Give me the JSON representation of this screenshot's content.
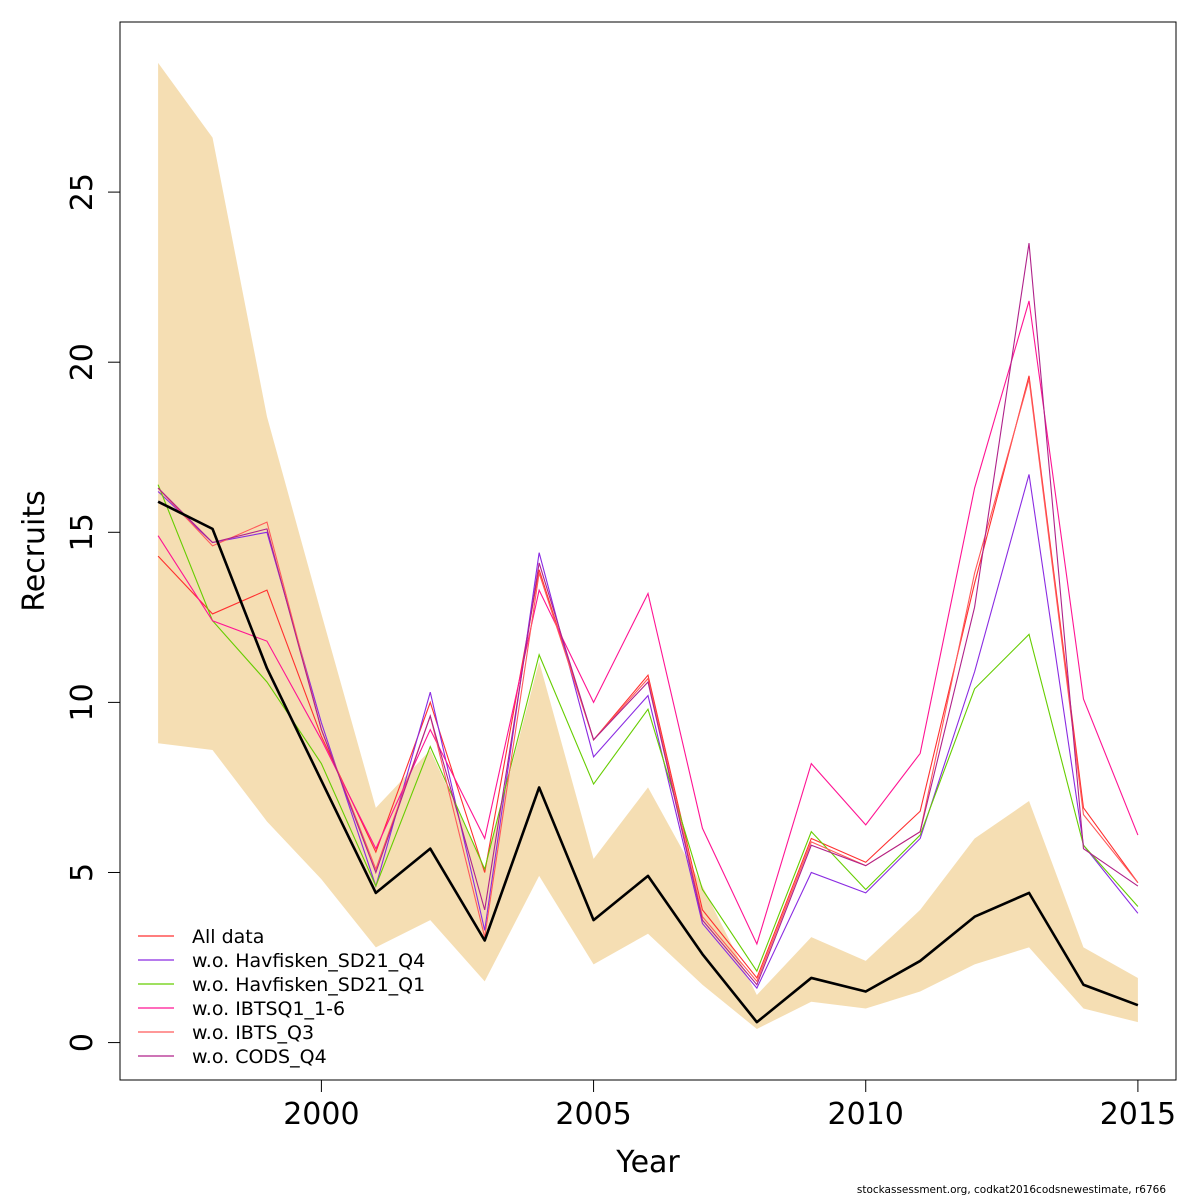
{
  "chart_data": {
    "type": "line",
    "xlabel": "Year",
    "ylabel": "Recruits",
    "xlim": [
      1996.3,
      2015.7
    ],
    "ylim": [
      -1.1,
      30.0
    ],
    "x_ticks": [
      2000,
      2005,
      2010,
      2015
    ],
    "x_tick_labels": [
      "2000",
      "2005",
      "2010",
      "2015"
    ],
    "y_ticks": [
      0,
      5,
      10,
      15,
      20,
      25
    ],
    "y_tick_labels": [
      "0",
      "5",
      "10",
      "15",
      "20",
      "25"
    ],
    "grid": false,
    "legend_position": "bottom-left",
    "x": [
      1997,
      1998,
      1999,
      2000,
      2001,
      2002,
      2003,
      2004,
      2005,
      2006,
      2007,
      2008,
      2009,
      2010,
      2011,
      2012,
      2013,
      2014,
      2015
    ],
    "confidence_band": {
      "color": "#F5DEB3",
      "upper": [
        28.8,
        26.6,
        18.4,
        12.6,
        6.9,
        8.6,
        5.1,
        11.2,
        5.4,
        7.5,
        4.6,
        1.4,
        3.1,
        2.4,
        3.9,
        6.0,
        7.1,
        2.8,
        1.9
      ],
      "lower": [
        8.8,
        8.6,
        6.5,
        4.8,
        2.8,
        3.6,
        1.8,
        4.9,
        2.3,
        3.2,
        1.7,
        0.4,
        1.2,
        1.0,
        1.5,
        2.3,
        2.8,
        1.0,
        0.6
      ]
    },
    "estimate": {
      "color": "#000000",
      "values": [
        15.9,
        15.1,
        11.0,
        7.7,
        4.4,
        5.7,
        3.0,
        7.5,
        3.6,
        4.9,
        2.6,
        0.6,
        1.9,
        1.5,
        2.4,
        3.7,
        4.4,
        1.7,
        1.1
      ]
    },
    "series": [
      {
        "name": "All data",
        "color": "#FF3030",
        "values": [
          14.3,
          12.6,
          13.3,
          9.0,
          5.6,
          10.0,
          5.0,
          13.9,
          8.9,
          10.8,
          3.9,
          1.9,
          6.0,
          5.3,
          6.8,
          13.5,
          19.6,
          6.9,
          4.7
        ]
      },
      {
        "name": "w.o. Havfisken_SD21_Q4",
        "color": "#8A2BE2",
        "values": [
          16.2,
          14.7,
          15.0,
          9.4,
          4.6,
          10.3,
          3.3,
          14.4,
          8.4,
          10.2,
          3.5,
          1.6,
          5.0,
          4.4,
          6.0,
          10.9,
          16.7,
          5.8,
          3.8
        ]
      },
      {
        "name": "w.o. Havfisken_SD21_Q1",
        "color": "#66CD00",
        "values": [
          16.4,
          12.4,
          10.6,
          8.2,
          4.6,
          8.7,
          5.1,
          11.4,
          7.6,
          9.8,
          4.5,
          2.1,
          6.2,
          4.5,
          6.1,
          10.4,
          12.0,
          5.8,
          4.0
        ]
      },
      {
        "name": "w.o. IBTSQ1_1-6",
        "color": "#FF1493",
        "values": [
          14.9,
          12.4,
          11.8,
          8.9,
          5.7,
          9.2,
          6.0,
          13.3,
          10.0,
          13.2,
          6.3,
          2.9,
          8.2,
          6.4,
          8.5,
          16.3,
          21.8,
          10.1,
          6.1
        ]
      },
      {
        "name": "w.o. IBTS_Q3",
        "color": "#FF5A5A",
        "values": [
          16.3,
          14.6,
          15.3,
          9.2,
          5.1,
          9.6,
          3.1,
          13.8,
          8.9,
          10.7,
          3.7,
          1.8,
          5.9,
          5.2,
          6.2,
          13.8,
          19.5,
          6.7,
          4.7
        ]
      },
      {
        "name": "w.o. CODS_Q4",
        "color": "#B0228A",
        "values": [
          16.3,
          14.7,
          15.1,
          9.2,
          5.0,
          9.6,
          3.9,
          14.1,
          8.9,
          10.6,
          3.6,
          1.7,
          5.8,
          5.2,
          6.2,
          12.8,
          23.5,
          5.7,
          4.6
        ]
      }
    ]
  },
  "footer": {
    "note": "stockassessment.org, codkat2016codsnewestimate, r6766"
  }
}
